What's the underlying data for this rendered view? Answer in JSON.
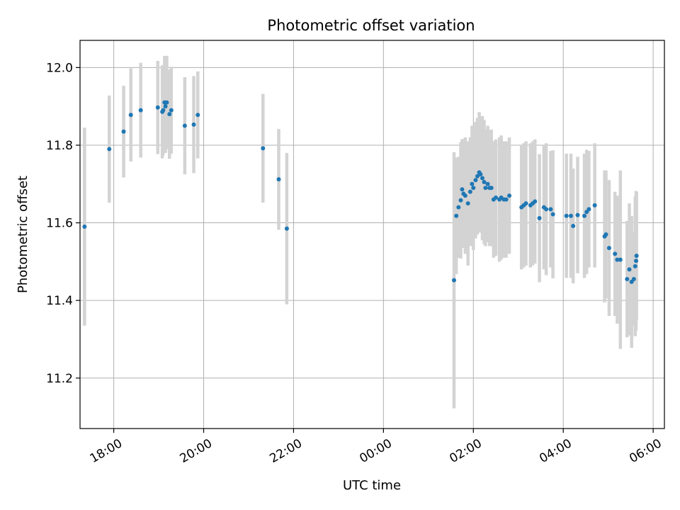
{
  "chart_data": {
    "type": "scatter",
    "title": "Photometric offset variation",
    "xlabel": "UTC time",
    "ylabel": "Photometric offset",
    "grid": true,
    "x_unit": "hours since 00:00 UTC (negative = previous day)",
    "xlim": [
      -6.75,
      6.25
    ],
    "ylim": [
      11.07,
      12.07
    ],
    "x_ticks": [
      {
        "value": -6,
        "label": "18:00"
      },
      {
        "value": -4,
        "label": "20:00"
      },
      {
        "value": -2,
        "label": "22:00"
      },
      {
        "value": 0,
        "label": "00:00"
      },
      {
        "value": 2,
        "label": "02:00"
      },
      {
        "value": 4,
        "label": "04:00"
      },
      {
        "value": 6,
        "label": "06:00"
      }
    ],
    "y_ticks": [
      {
        "value": 11.2,
        "label": "11.2"
      },
      {
        "value": 11.4,
        "label": "11.4"
      },
      {
        "value": 11.6,
        "label": "11.6"
      },
      {
        "value": 11.8,
        "label": "11.8"
      },
      {
        "value": 12.0,
        "label": "12.0"
      }
    ],
    "colors": {
      "points": "#1f77b4",
      "errorbars": "#d3d3d3",
      "grid": "#b0b0b0"
    },
    "series": [
      {
        "x": [
          -6.65,
          -6.1,
          -5.78,
          -5.62,
          -5.4,
          -5.02,
          -4.92,
          -4.9,
          -4.87,
          -4.85,
          -4.82,
          -4.76,
          -4.72,
          -4.42,
          -4.22,
          -4.13,
          -2.68,
          -2.33,
          -2.15,
          1.57,
          1.62,
          1.67,
          1.72,
          1.75,
          1.78,
          1.82,
          1.88,
          1.93,
          1.97,
          2.0,
          2.05,
          2.09,
          2.13,
          2.16,
          2.2,
          2.24,
          2.27,
          2.32,
          2.36,
          2.4,
          2.45,
          2.5,
          2.58,
          2.62,
          2.68,
          2.73,
          2.8,
          3.07,
          3.12,
          3.17,
          3.27,
          3.32,
          3.37,
          3.47,
          3.57,
          3.62,
          3.72,
          3.77,
          4.07,
          4.17,
          4.22,
          4.32,
          4.47,
          4.52,
          4.57,
          4.7,
          4.92,
          4.95,
          5.02,
          5.15,
          5.2,
          5.27,
          5.42,
          5.47,
          5.52,
          5.57,
          5.6,
          5.62,
          5.63
        ],
        "y": [
          11.59,
          11.79,
          11.835,
          11.878,
          11.89,
          11.897,
          11.886,
          11.89,
          11.91,
          11.9,
          11.91,
          11.88,
          11.89,
          11.85,
          11.853,
          11.878,
          11.792,
          11.712,
          11.585,
          11.452,
          11.618,
          11.64,
          11.658,
          11.686,
          11.675,
          11.67,
          11.65,
          11.68,
          11.7,
          11.69,
          11.71,
          11.72,
          11.73,
          11.725,
          11.715,
          11.705,
          11.69,
          11.7,
          11.69,
          11.69,
          11.66,
          11.665,
          11.66,
          11.665,
          11.66,
          11.66,
          11.67,
          11.64,
          11.645,
          11.65,
          11.645,
          11.65,
          11.655,
          11.612,
          11.64,
          11.635,
          11.635,
          11.622,
          11.618,
          11.618,
          11.592,
          11.62,
          11.618,
          11.628,
          11.635,
          11.645,
          11.565,
          11.57,
          11.535,
          11.52,
          11.505,
          11.505,
          11.455,
          11.48,
          11.448,
          11.455,
          11.488,
          11.502,
          11.515
        ],
        "yerr": [
          0.255,
          0.138,
          0.118,
          0.12,
          0.122,
          0.12,
          0.12,
          0.115,
          0.12,
          0.12,
          0.12,
          0.115,
          0.112,
          0.125,
          0.125,
          0.112,
          0.14,
          0.13,
          0.195,
          0.33,
          0.15,
          0.13,
          0.15,
          0.13,
          0.14,
          0.15,
          0.16,
          0.14,
          0.15,
          0.16,
          0.15,
          0.15,
          0.155,
          0.15,
          0.16,
          0.16,
          0.15,
          0.15,
          0.15,
          0.15,
          0.15,
          0.15,
          0.16,
          0.16,
          0.15,
          0.15,
          0.15,
          0.16,
          0.16,
          0.16,
          0.16,
          0.16,
          0.16,
          0.165,
          0.16,
          0.17,
          0.15,
          0.165,
          0.16,
          0.16,
          0.148,
          0.15,
          0.16,
          0.16,
          0.15,
          0.16,
          0.17,
          0.165,
          0.175,
          0.16,
          0.165,
          0.23,
          0.15,
          0.17,
          0.17,
          0.12,
          0.18,
          0.18,
          0.165
        ]
      }
    ]
  }
}
